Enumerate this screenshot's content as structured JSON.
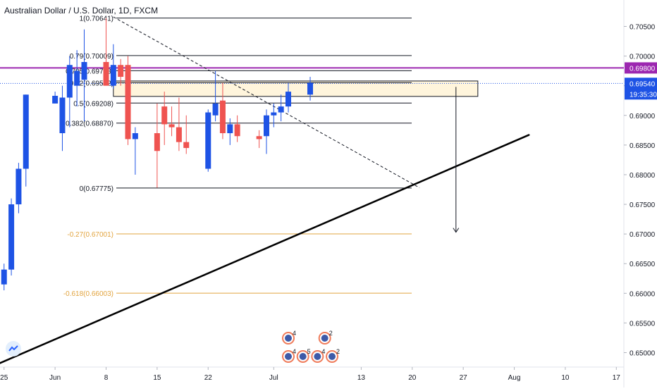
{
  "header": {
    "title": "Australian Dollar / U.S. Dollar, 1D, FXCM"
  },
  "colors": {
    "bull": "#1e53e5",
    "bear": "#ef5350",
    "fib": "#131722",
    "fib_ext": "#e2a43f",
    "purple": "#9c27b0",
    "price": "#1e53e5",
    "zone_fill": "#fff5dc",
    "grid_text": "#131722",
    "axis_line": "#e0e3eb"
  },
  "chart_data": {
    "type": "candlestick",
    "title": "Australian Dollar / U.S. Dollar, 1D, FXCM",
    "x_axis": {
      "tick_labels": [
        "25",
        "Jun",
        "8",
        "15",
        "22",
        "Jul",
        "13",
        "20",
        "27",
        "Aug",
        "10",
        "17"
      ],
      "tick_dates": [
        "2020-05-25",
        "2020-06-01",
        "2020-06-08",
        "2020-06-15",
        "2020-06-22",
        "2020-07-01",
        "2020-07-13",
        "2020-07-20",
        "2020-07-27",
        "2020-08-03",
        "2020-08-10",
        "2020-08-17"
      ]
    },
    "y_axis": {
      "range": [
        0.6475,
        0.7085
      ],
      "ticks": [
        "0.70500",
        "0.70000",
        "0.69500",
        "0.69000",
        "0.68500",
        "0.68000",
        "0.67500",
        "0.67000",
        "0.66500",
        "0.66000",
        "0.65500",
        "0.65000"
      ]
    },
    "candles": [
      {
        "date": "2020-05-18",
        "o": 0.6568,
        "h": 0.6575,
        "l": 0.652,
        "c": 0.6545
      },
      {
        "date": "2020-05-19",
        "o": 0.6545,
        "h": 0.656,
        "l": 0.6525,
        "c": 0.6555
      },
      {
        "date": "2020-05-20",
        "o": 0.6555,
        "h": 0.664,
        "l": 0.655,
        "c": 0.663
      },
      {
        "date": "2020-05-21",
        "o": 0.663,
        "h": 0.6645,
        "l": 0.658,
        "c": 0.66
      },
      {
        "date": "2020-05-22",
        "o": 0.66,
        "h": 0.6625,
        "l": 0.657,
        "c": 0.6615
      },
      {
        "date": "2020-05-25",
        "o": 0.6615,
        "h": 0.665,
        "l": 0.6605,
        "c": 0.664
      },
      {
        "date": "2020-05-26",
        "o": 0.664,
        "h": 0.676,
        "l": 0.663,
        "c": 0.675
      },
      {
        "date": "2020-05-27",
        "o": 0.675,
        "h": 0.682,
        "l": 0.6735,
        "c": 0.681
      },
      {
        "date": "2020-05-28",
        "o": 0.681,
        "h": 0.6935,
        "l": 0.678,
        "c": 0.6935
      },
      {
        "date": "2020-06-01",
        "o": 0.692,
        "h": 0.694,
        "l": 0.692,
        "c": 0.6933
      },
      {
        "date": "2020-06-02",
        "o": 0.687,
        "h": 0.695,
        "l": 0.684,
        "c": 0.693
      },
      {
        "date": "2020-06-03",
        "o": 0.693,
        "h": 0.7,
        "l": 0.688,
        "c": 0.6985
      },
      {
        "date": "2020-06-04",
        "o": 0.695,
        "h": 0.701,
        "l": 0.6915,
        "c": 0.6975
      },
      {
        "date": "2020-06-05",
        "o": 0.696,
        "h": 0.7045,
        "l": 0.689,
        "c": 0.699
      },
      {
        "date": "2020-06-08",
        "o": 0.699,
        "h": 0.7064,
        "l": 0.6955,
        "c": 0.695
      },
      {
        "date": "2020-06-09",
        "o": 0.695,
        "h": 0.702,
        "l": 0.6945,
        "c": 0.6985
      },
      {
        "date": "2020-06-10",
        "o": 0.6985,
        "h": 0.6995,
        "l": 0.695,
        "c": 0.6965
      },
      {
        "date": "2020-06-11",
        "o": 0.6985,
        "h": 0.7,
        "l": 0.685,
        "c": 0.686
      },
      {
        "date": "2020-06-12",
        "o": 0.686,
        "h": 0.688,
        "l": 0.68,
        "c": 0.687
      },
      {
        "date": "2020-06-15",
        "o": 0.687,
        "h": 0.692,
        "l": 0.6778,
        "c": 0.684
      },
      {
        "date": "2020-06-16",
        "o": 0.6915,
        "h": 0.694,
        "l": 0.685,
        "c": 0.6885
      },
      {
        "date": "2020-06-17",
        "o": 0.6885,
        "h": 0.6915,
        "l": 0.6865,
        "c": 0.688
      },
      {
        "date": "2020-06-18",
        "o": 0.688,
        "h": 0.693,
        "l": 0.684,
        "c": 0.6855
      },
      {
        "date": "2020-06-19",
        "o": 0.6855,
        "h": 0.69,
        "l": 0.6835,
        "c": 0.6845
      },
      {
        "date": "2020-06-22",
        "o": 0.681,
        "h": 0.691,
        "l": 0.6805,
        "c": 0.6905
      },
      {
        "date": "2020-06-23",
        "o": 0.69,
        "h": 0.6975,
        "l": 0.689,
        "c": 0.692
      },
      {
        "date": "2020-06-24",
        "o": 0.6925,
        "h": 0.6955,
        "l": 0.686,
        "c": 0.687
      },
      {
        "date": "2020-06-25",
        "o": 0.687,
        "h": 0.6895,
        "l": 0.685,
        "c": 0.6885
      },
      {
        "date": "2020-06-26",
        "o": 0.6885,
        "h": 0.69,
        "l": 0.6855,
        "c": 0.6865
      },
      {
        "date": "2020-06-29",
        "o": 0.6865,
        "h": 0.6875,
        "l": 0.6845,
        "c": 0.686
      },
      {
        "date": "2020-06-30",
        "o": 0.6865,
        "h": 0.691,
        "l": 0.6835,
        "c": 0.69
      },
      {
        "date": "2020-07-01",
        "o": 0.69,
        "h": 0.692,
        "l": 0.688,
        "c": 0.6905
      },
      {
        "date": "2020-07-02",
        "o": 0.6905,
        "h": 0.6935,
        "l": 0.689,
        "c": 0.6915
      },
      {
        "date": "2020-07-03",
        "o": 0.6915,
        "h": 0.6955,
        "l": 0.6905,
        "c": 0.694
      },
      {
        "date": "2020-07-06",
        "o": 0.6935,
        "h": 0.6965,
        "l": 0.6925,
        "c": 0.6955
      }
    ],
    "fib_levels": [
      {
        "label": "1(0.70641)",
        "value": 0.70641
      },
      {
        "label": "0.79(0.70009)",
        "value": 0.70009
      },
      {
        "label": "0.705(0.69753)",
        "value": 0.69753
      },
      {
        "label": "0.62(0.69552)",
        "value": 0.69552
      },
      {
        "label": "0.5(0.69208)",
        "value": 0.69208
      },
      {
        "label": "0.382(0.68870)",
        "value": 0.6887
      },
      {
        "label": "0(0.67775)",
        "value": 0.67775
      }
    ],
    "fib_extensions": [
      {
        "label": "-0.27(0.67001)",
        "value": 0.67001
      },
      {
        "label": "-0.618(0.66003)",
        "value": 0.66003
      }
    ],
    "horizontal_line": {
      "price": 0.698,
      "label": "0.69800"
    },
    "last_price": {
      "price": 0.6954,
      "label": "0.69540",
      "countdown": "19:35:30"
    },
    "zone": {
      "from_date": "2020-06-09",
      "to_date": "2020-07-29",
      "top": 0.6958,
      "bottom": 0.6932
    },
    "target_arrow": {
      "date": "2020-07-26",
      "from": 0.6948,
      "to": 0.6703
    },
    "trendline": {
      "start": {
        "date": "2020-05-24",
        "price": 0.648
      },
      "end": {
        "date": "2020-08-05",
        "price": 0.6867
      }
    },
    "dashed_line": {
      "start": {
        "date": "2020-06-09",
        "price": 0.7066
      },
      "end": {
        "date": "2020-07-21",
        "price": 0.6778
      }
    },
    "event_badges": [
      {
        "date": "2020-07-03",
        "row": 1,
        "text": "4"
      },
      {
        "date": "2020-07-08",
        "row": 1,
        "text": "2"
      },
      {
        "date": "2020-07-03",
        "row": 2,
        "text": "4"
      },
      {
        "date": "2020-07-05",
        "row": 2,
        "text": "5"
      },
      {
        "date": "2020-07-07",
        "row": 2,
        "text": "4"
      },
      {
        "date": "2020-07-09",
        "row": 2,
        "text": "2"
      }
    ]
  }
}
